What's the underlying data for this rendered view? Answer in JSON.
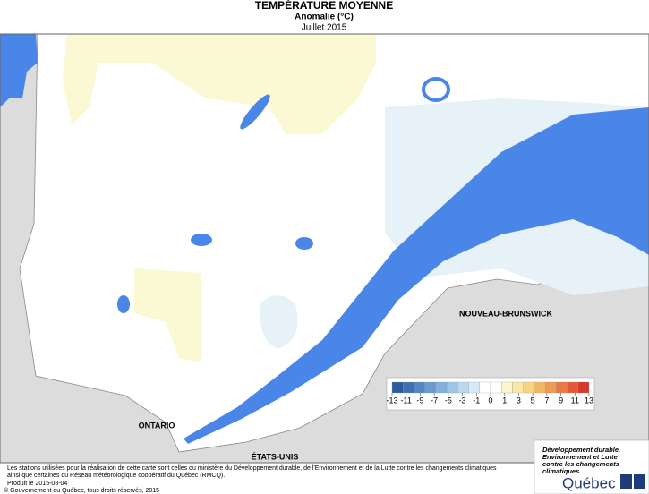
{
  "header": {
    "title": "TEMPÉRATURE MOYENNE",
    "subtitle": "Anomalie (°C)",
    "date": "Juillet 2015"
  },
  "map": {
    "labels": [
      "ONTARIO",
      "NOUVEAU-BRUNSWICK",
      "ÉTATS-UNIS"
    ]
  },
  "legend": {
    "ticks": [
      -13,
      -11,
      -9,
      -7,
      -5,
      -3,
      -1,
      0,
      1,
      3,
      5,
      7,
      9,
      11,
      13
    ],
    "colors": [
      "#2c5a9a",
      "#3f6fb0",
      "#5486c2",
      "#6a9bd0",
      "#84b0dc",
      "#9fc4e6",
      "#bcd7ee",
      "#d8e9f5",
      "#ffffff",
      "#ffffff",
      "#fbf6cf",
      "#f8e9a8",
      "#f5d483",
      "#f2b866",
      "#ef9a52",
      "#ea7a43",
      "#e25a38",
      "#d43a2e"
    ]
  },
  "footer": {
    "note": [
      "Les stations utilisées pour la réalisation de cette carte sont celles du ministère du Développement durable, de l'Environnement et de la Lutte contre les changements climatiques",
      "ainsi que certaines du Réseau météorologique coopératif du Québec (RMCQ)."
    ],
    "produced": "Produit le 2015-08-04",
    "copyright": "© Gouvernement du Québec, tous droits réservés, 2015"
  },
  "logo": {
    "lines": [
      "Développement durable,",
      "Environnement et Lutte",
      "contre les changements",
      "climatiques"
    ],
    "name": "Québec"
  }
}
